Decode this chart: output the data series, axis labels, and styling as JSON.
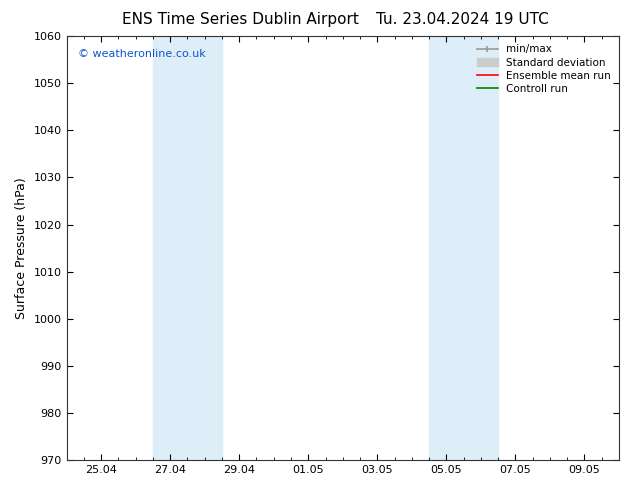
{
  "title_left": "ENS Time Series Dublin Airport",
  "title_right": "Tu. 23.04.2024 19 UTC",
  "ylabel": "Surface Pressure (hPa)",
  "ylim": [
    970,
    1060
  ],
  "yticks": [
    970,
    980,
    990,
    1000,
    1010,
    1020,
    1030,
    1040,
    1050,
    1060
  ],
  "xtick_labels": [
    "25.04",
    "27.04",
    "29.04",
    "01.05",
    "03.05",
    "05.05",
    "07.05",
    "09.05"
  ],
  "xtick_positions": [
    0,
    2,
    4,
    6,
    8,
    10,
    12,
    14
  ],
  "xlim_start": -1,
  "xlim_end": 15,
  "shaded_regions": [
    {
      "x_start": 1.5,
      "x_end": 3.5
    },
    {
      "x_start": 9.5,
      "x_end": 11.5
    }
  ],
  "shaded_color": "#ddeef8",
  "watermark_text": "© weatheronline.co.uk",
  "watermark_color": "#1155cc",
  "legend_entries": [
    {
      "label": "min/max",
      "color": "#999999",
      "lw": 1.2
    },
    {
      "label": "Standard deviation",
      "color": "#cccccc",
      "lw": 7
    },
    {
      "label": "Ensemble mean run",
      "color": "red",
      "lw": 1.2
    },
    {
      "label": "Controll run",
      "color": "green",
      "lw": 1.2
    }
  ],
  "bg_color": "#ffffff",
  "title_fontsize": 11,
  "label_fontsize": 9,
  "tick_fontsize": 8,
  "legend_fontsize": 7.5
}
